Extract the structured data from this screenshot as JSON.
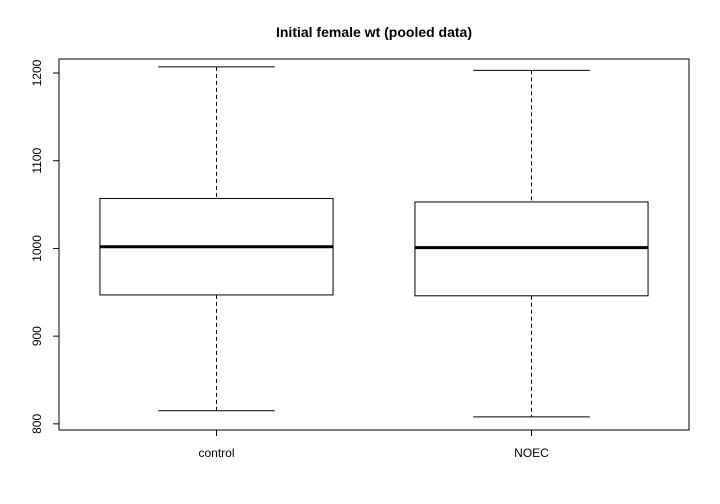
{
  "chart_data": {
    "type": "boxplot",
    "title": "Initial female wt (pooled data)",
    "xlabel": "",
    "ylabel": "",
    "ylim": [
      793,
      1216
    ],
    "y_ticks": [
      800,
      900,
      1000,
      1100,
      1200
    ],
    "grid": false,
    "legend": "none",
    "categories": [
      "control",
      "NOEC"
    ],
    "boxes": [
      {
        "category": "control",
        "min": 815,
        "q1": 947,
        "median": 1002,
        "q3": 1057,
        "max": 1207
      },
      {
        "category": "NOEC",
        "min": 808,
        "q1": 946,
        "median": 1001,
        "q3": 1053,
        "max": 1203
      }
    ]
  }
}
